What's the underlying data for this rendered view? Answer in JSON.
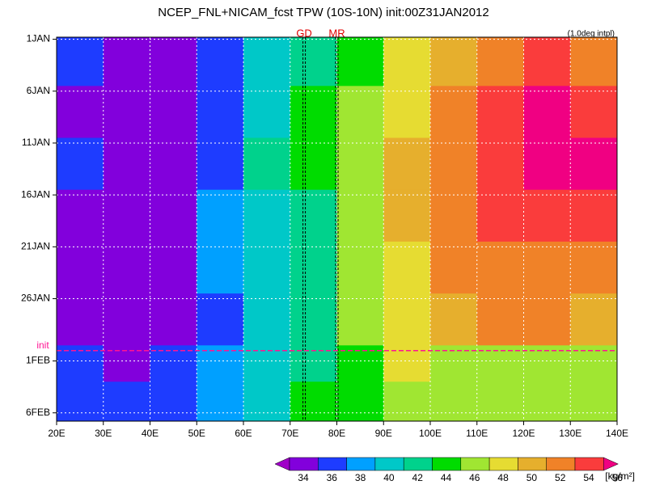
{
  "chart_data": {
    "type": "heatmap",
    "title": "NCEP_FNL+NICAM_fcst TPW (10S-10N) init:00Z31JAN2012",
    "annotation": "(1.0deg intpl)",
    "xlim": [
      20,
      140
    ],
    "xticks": [
      {
        "value": 20,
        "label": "20E"
      },
      {
        "value": 30,
        "label": "30E"
      },
      {
        "value": 40,
        "label": "40E"
      },
      {
        "value": 50,
        "label": "50E"
      },
      {
        "value": 60,
        "label": "60E"
      },
      {
        "value": 70,
        "label": "70E"
      },
      {
        "value": 80,
        "label": "80E"
      },
      {
        "value": 90,
        "label": "90E"
      },
      {
        "value": 100,
        "label": "100E"
      },
      {
        "value": 110,
        "label": "110E"
      },
      {
        "value": 120,
        "label": "120E"
      },
      {
        "value": 130,
        "label": "130E"
      },
      {
        "value": 140,
        "label": "140E"
      }
    ],
    "ylim": [
      0.8,
      37.8
    ],
    "yticks": [
      {
        "value": 1,
        "label": "1JAN"
      },
      {
        "value": 6,
        "label": "6JAN"
      },
      {
        "value": 11,
        "label": "11JAN"
      },
      {
        "value": 16,
        "label": "16JAN"
      },
      {
        "value": 21,
        "label": "21JAN"
      },
      {
        "value": 26,
        "label": "26JAN"
      },
      {
        "value": 32,
        "label": "1FEB"
      },
      {
        "value": 37,
        "label": "6FEB"
      }
    ],
    "grid": true,
    "x_edges": [
      20,
      30,
      40,
      50,
      60,
      70,
      80,
      90,
      100,
      110,
      120,
      130,
      140
    ],
    "y_edges": [
      0.8,
      5.5,
      10.5,
      15.5,
      20.5,
      25.5,
      30.5,
      34,
      37.8
    ],
    "values": [
      [
        36,
        35,
        35,
        37,
        41,
        43,
        45,
        49,
        51,
        53,
        54,
        53
      ],
      [
        35,
        34.5,
        35,
        36,
        41,
        44,
        46,
        48,
        52,
        55,
        56,
        55
      ],
      [
        36,
        35,
        35,
        37,
        42,
        44,
        46,
        51,
        53,
        55,
        56,
        56
      ],
      [
        35,
        35,
        35,
        38,
        41,
        43,
        46,
        51,
        53,
        54,
        55,
        54
      ],
      [
        35,
        35,
        35,
        38,
        41,
        43,
        47,
        49,
        52,
        53,
        53,
        52
      ],
      [
        35,
        35,
        35,
        37,
        40,
        43,
        46,
        49,
        51,
        52,
        52,
        51
      ],
      [
        36,
        35,
        36,
        39,
        41,
        42,
        45,
        48,
        47,
        46,
        46,
        46
      ],
      [
        37,
        36,
        37,
        39,
        41,
        44,
        45,
        46,
        46,
        46,
        46,
        46
      ]
    ],
    "levels": [
      34,
      36,
      38,
      40,
      42,
      44,
      46,
      48,
      50,
      52,
      54,
      56
    ],
    "colors": [
      "#a000c8",
      "#8200dc",
      "#1e3cff",
      "#00a0ff",
      "#00c8c8",
      "#00d28c",
      "#00dc00",
      "#a0e632",
      "#e6dc32",
      "#e6af2d",
      "#f08228",
      "#fa3c3c",
      "#f00082"
    ],
    "unit": "[kg/m²]",
    "markers": [
      {
        "label": "GD",
        "x": 73
      },
      {
        "label": "MR",
        "x": 80
      }
    ],
    "init": {
      "label": "init",
      "y": 31
    }
  }
}
